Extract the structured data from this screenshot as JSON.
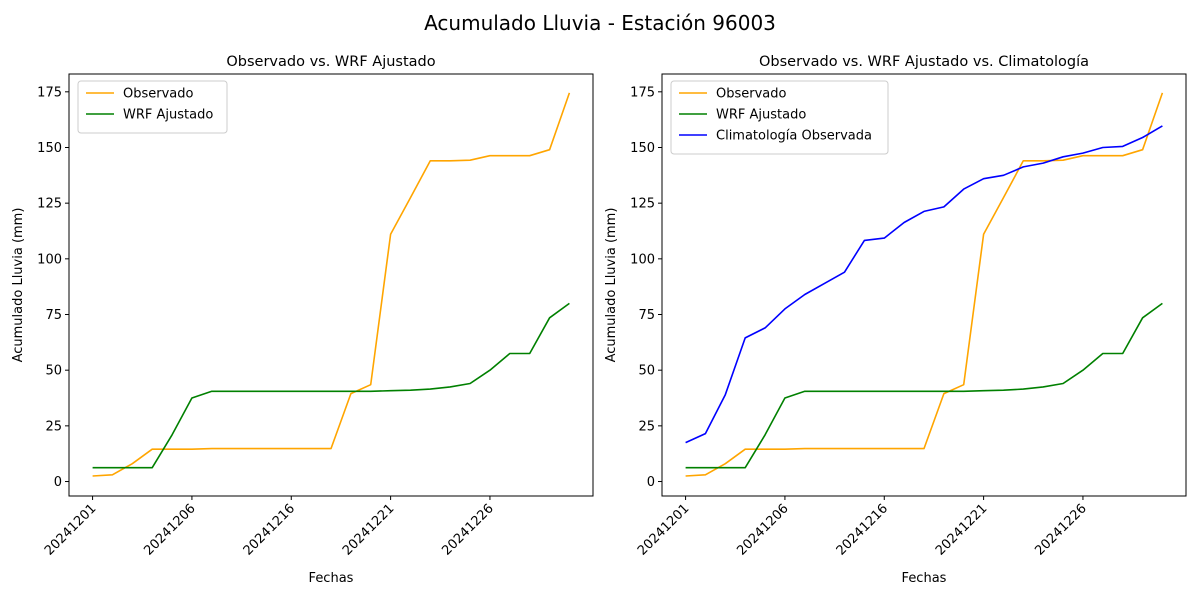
{
  "figure": {
    "title": "Acumulado Lluvia - Estación 96003"
  },
  "chart_data": [
    {
      "type": "line",
      "title": "Observado vs. WRF Ajustado",
      "xlabel": "Fechas",
      "ylabel": "Acumulado Lluvia (mm)",
      "x_tick_labels": [
        "20241201",
        "20241206",
        "20241216",
        "20241221",
        "20241226"
      ],
      "y_ticks": [
        0,
        25,
        50,
        75,
        100,
        125,
        150,
        175
      ],
      "ylim": [
        -6.5,
        183
      ],
      "grid": false,
      "legend_position": "top-left",
      "series": [
        {
          "name": "Observado",
          "color": "#FFA500",
          "values": [
            2.5,
            3,
            8,
            14.5,
            14.5,
            14.5,
            14.8,
            14.8,
            14.8,
            14.8,
            14.8,
            14.8,
            14.8,
            39.5,
            43.5,
            111,
            127.5,
            144,
            144,
            144.3,
            146.3,
            146.3,
            146.3,
            149,
            174.5
          ]
        },
        {
          "name": "WRF Ajustado",
          "color": "#008000",
          "values": [
            6.2,
            6.2,
            6.2,
            6.2,
            21,
            37.5,
            40.5,
            40.5,
            40.5,
            40.5,
            40.5,
            40.5,
            40.5,
            40.5,
            40.5,
            40.8,
            41,
            41.5,
            42.5,
            44,
            50,
            57.5,
            57.5,
            73.5,
            80
          ]
        }
      ]
    },
    {
      "type": "line",
      "title": "Observado vs. WRF Ajustado vs. Climatología",
      "xlabel": "Fechas",
      "ylabel": "Acumulado Lluvia (mm)",
      "x_tick_labels": [
        "20241201",
        "20241206",
        "20241216",
        "20241221",
        "20241226"
      ],
      "y_ticks": [
        0,
        25,
        50,
        75,
        100,
        125,
        150,
        175
      ],
      "ylim": [
        -6.5,
        183
      ],
      "grid": false,
      "legend_position": "top-left",
      "series": [
        {
          "name": "Observado",
          "color": "#FFA500",
          "values": [
            2.5,
            3,
            8,
            14.5,
            14.5,
            14.5,
            14.8,
            14.8,
            14.8,
            14.8,
            14.8,
            14.8,
            14.8,
            39.5,
            43.5,
            111,
            127.5,
            144,
            144,
            144.3,
            146.3,
            146.3,
            146.3,
            149,
            174.5
          ]
        },
        {
          "name": "WRF Ajustado",
          "color": "#008000",
          "values": [
            6.2,
            6.2,
            6.2,
            6.2,
            21,
            37.5,
            40.5,
            40.5,
            40.5,
            40.5,
            40.5,
            40.5,
            40.5,
            40.5,
            40.5,
            40.8,
            41,
            41.5,
            42.5,
            44,
            50,
            57.5,
            57.5,
            73.5,
            80
          ]
        },
        {
          "name": "Climatología Observada",
          "color": "#0000FF",
          "values": [
            17.5,
            21.5,
            39,
            64.5,
            69,
            77.5,
            84,
            89,
            94,
            108.3,
            109.3,
            116.3,
            121.3,
            123.3,
            131.3,
            136,
            137.5,
            141.3,
            143,
            145.8,
            147.5,
            150,
            150.5,
            154.5,
            159.7
          ]
        }
      ]
    }
  ]
}
